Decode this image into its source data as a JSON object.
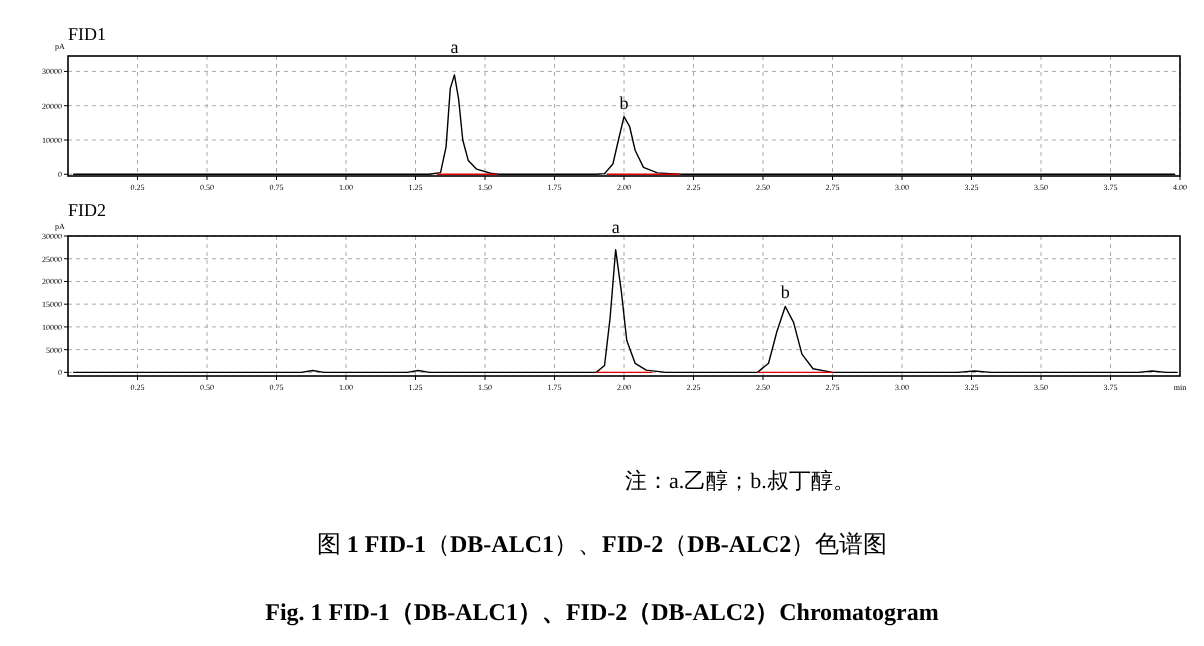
{
  "chart_data": [
    {
      "type": "line",
      "title": "FID1",
      "ylabel": "pA",
      "xlim": [
        0,
        4
      ],
      "ylim": [
        -500,
        34500
      ],
      "xticks": [
        {
          "value": 0.25,
          "label": "0.25"
        },
        {
          "value": 0.5,
          "label": "0.50"
        },
        {
          "value": 0.75,
          "label": "0.75"
        },
        {
          "value": 1,
          "label": "1.00"
        },
        {
          "value": 1.25,
          "label": "1.25"
        },
        {
          "value": 1.5,
          "label": "1.50"
        },
        {
          "value": 1.75,
          "label": "1.75"
        },
        {
          "value": 2,
          "label": "2.00"
        },
        {
          "value": 2.25,
          "label": "2.25"
        },
        {
          "value": 2.5,
          "label": "2.50"
        },
        {
          "value": 2.75,
          "label": "2.75"
        },
        {
          "value": 3,
          "label": "3.00"
        },
        {
          "value": 3.25,
          "label": "3.25"
        },
        {
          "value": 3.5,
          "label": "3.50"
        },
        {
          "value": 3.75,
          "label": "3.75"
        },
        {
          "value": 4,
          "label": "4.00"
        }
      ],
      "yticks": [
        0,
        10000,
        20000,
        30000
      ],
      "grid": true,
      "line_style": "solid",
      "series": [
        {
          "color": "#000000",
          "x": [
            0.02,
            1.3,
            1.34,
            1.36,
            1.375,
            1.39,
            1.405,
            1.42,
            1.44,
            1.47,
            1.52,
            1.55,
            1.9,
            1.93,
            1.96,
            1.98,
            2.0,
            2.02,
            2.04,
            2.07,
            2.12,
            2.2,
            3.98
          ],
          "values": [
            0,
            0,
            500,
            8000,
            25000,
            29000,
            22000,
            10000,
            4000,
            1500,
            300,
            0,
            0,
            200,
            3000,
            10000,
            16800,
            14000,
            7000,
            2000,
            400,
            0,
            0
          ]
        },
        {
          "color": "#e00000",
          "x": [
            1.33,
            1.54
          ],
          "values": [
            0,
            0
          ]
        },
        {
          "color": "#e00000",
          "x": [
            1.94,
            2.2
          ],
          "values": [
            0,
            0
          ]
        }
      ],
      "annotations": [
        {
          "text": "a",
          "x": 1.39,
          "y": 29000
        },
        {
          "text": "b",
          "x": 2.0,
          "y": 16800
        }
      ]
    },
    {
      "type": "line",
      "title": "FID2",
      "ylabel": "pA",
      "xlabel": "min",
      "xlim": [
        0,
        4
      ],
      "ylim": [
        -800,
        30000
      ],
      "xticks": [
        {
          "value": 0.25,
          "label": "0.25"
        },
        {
          "value": 0.5,
          "label": "0.50"
        },
        {
          "value": 0.75,
          "label": "0.75"
        },
        {
          "value": 1,
          "label": "1.00"
        },
        {
          "value": 1.25,
          "label": "1.25"
        },
        {
          "value": 1.5,
          "label": "1.50"
        },
        {
          "value": 1.75,
          "label": "1.75"
        },
        {
          "value": 2,
          "label": "2.00"
        },
        {
          "value": 2.25,
          "label": "2.25"
        },
        {
          "value": 2.5,
          "label": "2.50"
        },
        {
          "value": 2.75,
          "label": "2.75"
        },
        {
          "value": 3,
          "label": "3.00"
        },
        {
          "value": 3.25,
          "label": "3.25"
        },
        {
          "value": 3.5,
          "label": "3.50"
        },
        {
          "value": 3.75,
          "label": "3.75"
        }
      ],
      "yticks": [
        0,
        5000,
        10000,
        15000,
        20000,
        25000,
        30000
      ],
      "grid": true,
      "line_style": "solid",
      "series": [
        {
          "color": "#000000",
          "x": [
            0.02,
            0.84,
            0.88,
            0.92,
            1.22,
            1.26,
            1.3,
            1.9,
            1.93,
            1.95,
            1.97,
            1.99,
            2.01,
            2.04,
            2.08,
            2.15,
            2.48,
            2.52,
            2.55,
            2.58,
            2.61,
            2.64,
            2.68,
            2.75,
            3.2,
            3.26,
            3.32,
            3.85,
            3.9,
            3.95,
            3.99
          ],
          "values": [
            0,
            0,
            400,
            0,
            0,
            400,
            0,
            0,
            1500,
            12000,
            27000,
            18000,
            7000,
            2000,
            500,
            0,
            0,
            2000,
            9000,
            14500,
            11000,
            4000,
            800,
            0,
            0,
            300,
            0,
            0,
            300,
            0,
            0
          ]
        },
        {
          "color": "#e00000",
          "x": [
            1.9,
            2.1
          ],
          "values": [
            0,
            0
          ]
        },
        {
          "color": "#e00000",
          "x": [
            2.48,
            2.75
          ],
          "values": [
            0,
            0
          ]
        }
      ],
      "annotations": [
        {
          "text": "a",
          "x": 1.97,
          "y": 27000
        },
        {
          "text": "b",
          "x": 2.58,
          "y": 14500
        },
        "注：a.乙醇；b.叔丁醇。",
        "图 **1 FID-1**（**DB-ALC1**）、**FID-2**（**DB-ALC2**）色谱图",
        "Fig. 1 FID-1（DB-ALC1）、FID-2（DB-ALC2）Chromatogram"
      ]
    }
  ]
}
